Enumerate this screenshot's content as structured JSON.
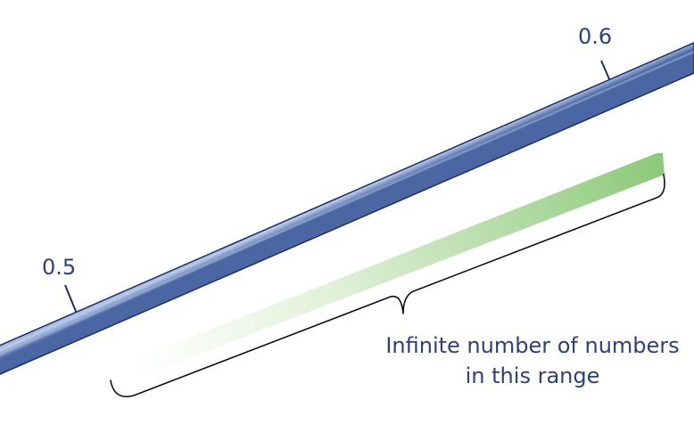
{
  "number_line": {
    "tick_labels": [
      "0.5",
      "0.6"
    ],
    "colors": {
      "bar_edge": "#3d5a99",
      "bar_highlight": "#c9d8ef",
      "bar_dark": "#1e2f63",
      "range_fill": "#8cc97a",
      "text": "#2f3f7a"
    }
  },
  "range_caption": {
    "line1": "Infinite number of numbers",
    "line2": "in this range"
  }
}
